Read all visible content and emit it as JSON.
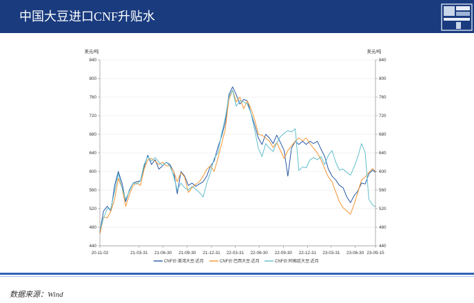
{
  "header": {
    "title": "中国大豆进口CNF升贴水",
    "background_color": "#1a3b7e"
  },
  "logo": {
    "icon": "company-logo-icon"
  },
  "footer": {
    "source": "数据来源：Wind",
    "rule_color": "#2f62b5"
  },
  "chart_data": {
    "type": "line",
    "ylabel_left": "美元/吨",
    "ylabel_right": "美元/吨",
    "ylim": [
      440,
      840
    ],
    "yticks": [
      440,
      480,
      520,
      560,
      600,
      640,
      680,
      720,
      760,
      800,
      840
    ],
    "xtick_labels": [
      "20-11-02",
      "21-03-31",
      "21-06-30",
      "21-09-30",
      "21-12-31",
      "22-03-31",
      "22-06-30",
      "22-09-30",
      "22-12-31",
      "23-03-31",
      "23-06-30",
      "23-09-15"
    ],
    "grid": true,
    "legend": "bottom",
    "x": [
      "2020-11-02",
      "2020-11-16",
      "2020-11-30",
      "2020-12-14",
      "2020-12-28",
      "2021-01-11",
      "2021-01-25",
      "2021-02-08",
      "2021-02-22",
      "2021-03-08",
      "2021-03-22",
      "2021-04-05",
      "2021-04-19",
      "2021-05-03",
      "2021-05-17",
      "2021-05-31",
      "2021-06-14",
      "2021-06-28",
      "2021-07-12",
      "2021-07-26",
      "2021-08-09",
      "2021-08-23",
      "2021-09-06",
      "2021-09-20",
      "2021-10-04",
      "2021-10-18",
      "2021-11-01",
      "2021-11-15",
      "2021-11-29",
      "2021-12-13",
      "2021-12-27",
      "2022-01-10",
      "2022-01-24",
      "2022-02-07",
      "2022-02-21",
      "2022-03-07",
      "2022-03-21",
      "2022-04-04",
      "2022-04-18",
      "2022-05-02",
      "2022-05-16",
      "2022-05-30",
      "2022-06-13",
      "2022-06-27",
      "2022-07-11",
      "2022-07-25",
      "2022-08-08",
      "2022-08-22",
      "2022-09-05",
      "2022-09-19",
      "2022-10-03",
      "2022-10-17",
      "2022-10-31",
      "2022-11-14",
      "2022-11-28",
      "2022-12-12",
      "2022-12-26",
      "2023-01-09",
      "2023-01-23",
      "2023-02-06",
      "2023-02-20",
      "2023-03-06",
      "2023-03-20",
      "2023-04-03",
      "2023-04-17",
      "2023-05-01",
      "2023-05-15",
      "2023-05-29",
      "2023-06-12",
      "2023-06-26",
      "2023-07-10",
      "2023-07-24",
      "2023-08-07",
      "2023-08-21",
      "2023-09-04",
      "2023-09-15"
    ],
    "series": [
      {
        "name": "CNF价:美湾大豆:近月",
        "color": "#2356a6",
        "values": [
          470,
          515,
          525,
          515,
          570,
          600,
          575,
          535,
          560,
          575,
          578,
          580,
          610,
          635,
          615,
          625,
          605,
          612,
          620,
          615,
          600,
          552,
          600,
          590,
          570,
          575,
          568,
          573,
          578,
          590,
          612,
          622,
          652,
          675,
          705,
          765,
          782,
          765,
          745,
          755,
          752,
          725,
          700,
          672,
          658,
          680,
          672,
          660,
          678,
          662,
          645,
          590,
          650,
          665,
          658,
          665,
          658,
          665,
          660,
          665,
          648,
          632,
          605,
          590,
          582,
          570,
          565,
          545,
          533,
          548,
          558,
          575,
          573,
          595,
          603,
          598
        ]
      },
      {
        "name": "CNF价:巴西大豆:近月",
        "color": "#f29430",
        "values": [
          465,
          502,
          500,
          515,
          540,
          585,
          565,
          525,
          550,
          570,
          575,
          570,
          605,
          625,
          628,
          622,
          615,
          620,
          612,
          612,
          600,
          578,
          598,
          588,
          555,
          565,
          572,
          578,
          590,
          605,
          612,
          600,
          628,
          658,
          690,
          755,
          775,
          750,
          760,
          735,
          752,
          735,
          712,
          680,
          678,
          672,
          665,
          652,
          662,
          645,
          628,
          645,
          655,
          665,
          672,
          666,
          672,
          660,
          650,
          640,
          625,
          606,
          588,
          578,
          556,
          535,
          522,
          515,
          508,
          530,
          555,
          582,
          588,
          598,
          606,
          600
        ]
      },
      {
        "name": "CNF价:阿根廷大豆:近月",
        "color": "#5fbdca",
        "values": [
          473,
          500,
          520,
          520,
          558,
          595,
          565,
          540,
          558,
          575,
          573,
          580,
          615,
          632,
          622,
          630,
          620,
          613,
          620,
          612,
          590,
          560,
          575,
          565,
          560,
          568,
          562,
          555,
          545,
          575,
          598,
          628,
          640,
          680,
          715,
          760,
          775,
          740,
          752,
          750,
          745,
          725,
          690,
          650,
          632,
          660,
          650,
          643,
          662,
          675,
          682,
          688,
          685,
          692,
          602,
          610,
          608,
          625,
          630,
          625,
          632,
          615,
          635,
          645,
          620,
          603,
          605,
          598,
          592,
          610,
          632,
          660,
          640,
          540,
          528,
          524
        ]
      }
    ]
  }
}
